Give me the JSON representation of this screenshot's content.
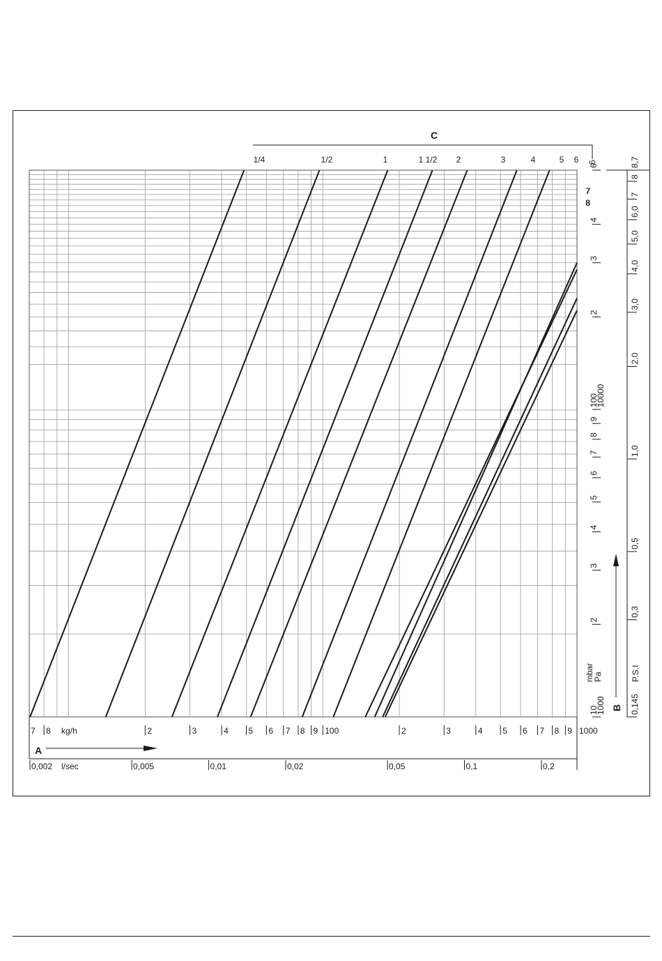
{
  "chart_data": {
    "type": "line",
    "x_scale": "log",
    "y_scale": "log",
    "grid": true,
    "x_kg": [
      7,
      1000
    ],
    "y_mbar": [
      10,
      130
    ],
    "y_major_ticks": [
      10,
      100
    ],
    "curve_group_label": "C",
    "axis_a": {
      "letter": "A",
      "unit_kg": "kg/h",
      "unit_lsec": "l/sec",
      "kg_ticks": [
        {
          "value": 7,
          "label": "7"
        },
        {
          "value": 8,
          "label": "8"
        },
        {
          "value": 20,
          "label": "2"
        },
        {
          "value": 30,
          "label": "3"
        },
        {
          "value": 40,
          "label": "4"
        },
        {
          "value": 50,
          "label": "5"
        },
        {
          "value": 60,
          "label": "6"
        },
        {
          "value": 70,
          "label": "7"
        },
        {
          "value": 80,
          "label": "8"
        },
        {
          "value": 90,
          "label": "9"
        },
        {
          "value": 100,
          "label": "100"
        },
        {
          "value": 200,
          "label": "2"
        },
        {
          "value": 300,
          "label": "3"
        },
        {
          "value": 400,
          "label": "4"
        },
        {
          "value": 500,
          "label": "5"
        },
        {
          "value": 600,
          "label": "6"
        },
        {
          "value": 700,
          "label": "7"
        },
        {
          "value": 800,
          "label": "8"
        },
        {
          "value": 900,
          "label": "9"
        },
        {
          "value": 1000,
          "label": "1000"
        }
      ],
      "lsec_ticks": [
        {
          "value": 0.002,
          "label": "0,002"
        },
        {
          "value": 0.005,
          "label": "0,005"
        },
        {
          "value": 0.01,
          "label": "0,01"
        },
        {
          "value": 0.02,
          "label": "0,02"
        },
        {
          "value": 0.05,
          "label": "0,05"
        },
        {
          "value": 0.1,
          "label": "0,1"
        },
        {
          "value": 0.2,
          "label": "0,2"
        }
      ]
    },
    "axis_b": {
      "letter": "B",
      "unit_mbar": "mbar",
      "unit_pa": "Pa",
      "unit_psi": "P.S.I",
      "mbar_ticks": [
        {
          "value": 10,
          "label": "10"
        },
        {
          "value": 20,
          "label": "2"
        },
        {
          "value": 30,
          "label": "3"
        },
        {
          "value": 40,
          "label": "4"
        },
        {
          "value": 50,
          "label": "5"
        },
        {
          "value": 60,
          "label": "6"
        },
        {
          "value": 70,
          "label": "7"
        },
        {
          "value": 80,
          "label": "8"
        },
        {
          "value": 90,
          "label": "9"
        },
        {
          "value": 100,
          "label": "100"
        },
        {
          "value": 200,
          "label": "2"
        },
        {
          "value": 300,
          "label": "3"
        },
        {
          "value": 400,
          "label": "4"
        },
        {
          "value": 600,
          "label": "6"
        }
      ],
      "pa_ticks": [
        {
          "value": 10,
          "label": "1000"
        },
        {
          "value": 100,
          "label": "10000"
        }
      ],
      "upper_labels": [
        {
          "value": 500,
          "label": "7"
        },
        {
          "value": 480,
          "label": "8"
        }
      ],
      "psi_ticks": [
        {
          "value": 10,
          "label": "0,145"
        },
        {
          "value": 20.7,
          "label": "0,3"
        },
        {
          "value": 34.5,
          "label": "0,5"
        },
        {
          "value": 69,
          "label": "1,0"
        },
        {
          "value": 138,
          "label": "2,0"
        },
        {
          "value": 207,
          "label": "3,0"
        },
        {
          "value": 276,
          "label": "4,0"
        },
        {
          "value": 345,
          "label": "5,0"
        },
        {
          "value": 414,
          "label": "6,0"
        },
        {
          "value": 483,
          "label": "7"
        },
        {
          "value": 552,
          "label": "8"
        },
        {
          "value": 600,
          "label": "8,7"
        }
      ]
    },
    "series": [
      {
        "name": "1/4",
        "points": [
          [
            7.05,
            10
          ],
          [
            49,
            600
          ]
        ]
      },
      {
        "name": "1/2",
        "points": [
          [
            14,
            10
          ],
          [
            97,
            600
          ]
        ]
      },
      {
        "name": "1",
        "points": [
          [
            25.5,
            10
          ],
          [
            180,
            600
          ]
        ]
      },
      {
        "name": "1 1/2",
        "points": [
          [
            38.5,
            10
          ],
          [
            270,
            600
          ]
        ]
      },
      {
        "name": "2",
        "points": [
          [
            52,
            10
          ],
          [
            370,
            600
          ]
        ]
      },
      {
        "name": "3",
        "points": [
          [
            83,
            10
          ],
          [
            580,
            600
          ]
        ]
      },
      {
        "name": "4",
        "points": [
          [
            110,
            10
          ],
          [
            780,
            600
          ]
        ]
      },
      {
        "name": "5",
        "points": [
          [
            147,
            10
          ],
          [
            1030,
            300
          ]
        ]
      },
      {
        "name": "6",
        "points": [
          [
            160,
            10
          ],
          [
            1000,
            300
          ]
        ]
      },
      {
        "name": "7",
        "points": [
          [
            172,
            10
          ],
          [
            1000,
            230
          ]
        ]
      },
      {
        "name": "8",
        "points": [
          [
            176,
            10
          ],
          [
            1000,
            210
          ]
        ]
      }
    ]
  }
}
